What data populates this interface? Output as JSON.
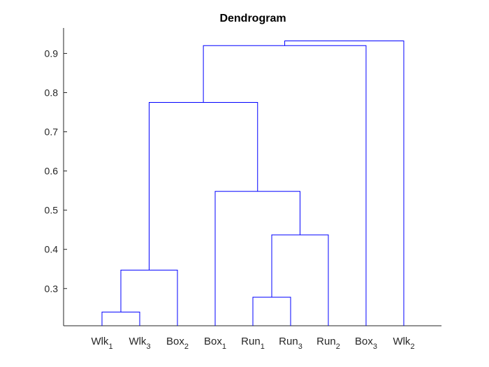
{
  "chart_data": {
    "type": "dendrogram",
    "title": "Dendrogram",
    "xlabel": "",
    "ylabel": "",
    "ylim": [
      0.205,
      0.965
    ],
    "yticks": [
      0.3,
      0.4,
      0.5,
      0.6,
      0.7,
      0.8,
      0.9
    ],
    "grid": false,
    "line_color": "#0000ff",
    "leaves": [
      {
        "base": "Wlk",
        "sub": "1"
      },
      {
        "base": "Wlk",
        "sub": "3"
      },
      {
        "base": "Box",
        "sub": "2"
      },
      {
        "base": "Box",
        "sub": "1"
      },
      {
        "base": "Run",
        "sub": "1"
      },
      {
        "base": "Run",
        "sub": "3"
      },
      {
        "base": "Run",
        "sub": "2"
      },
      {
        "base": "Box",
        "sub": "3"
      },
      {
        "base": "Wlk",
        "sub": "2"
      }
    ],
    "merges": [
      {
        "left": "Wlk1",
        "right": "Wlk3",
        "height": 0.24
      },
      {
        "left": "Run1",
        "right": "Run3",
        "height": 0.278
      },
      {
        "left": "(Wlk1,Wlk3)",
        "right": "Box2",
        "height": 0.347
      },
      {
        "left": "(Run1,Run3)",
        "right": "Run2",
        "height": 0.437
      },
      {
        "left": "Box1",
        "right": "((Run1,Run3),Run2)",
        "height": 0.548
      },
      {
        "left": "((Wlk1,Wlk3),Box2)",
        "right": "(Box1,((Run1,Run3),Run2))",
        "height": 0.775
      },
      {
        "left": "(...)",
        "right": "Box3",
        "height": 0.92
      },
      {
        "left": "(...)",
        "right": "Wlk2",
        "height": 0.932
      }
    ]
  }
}
